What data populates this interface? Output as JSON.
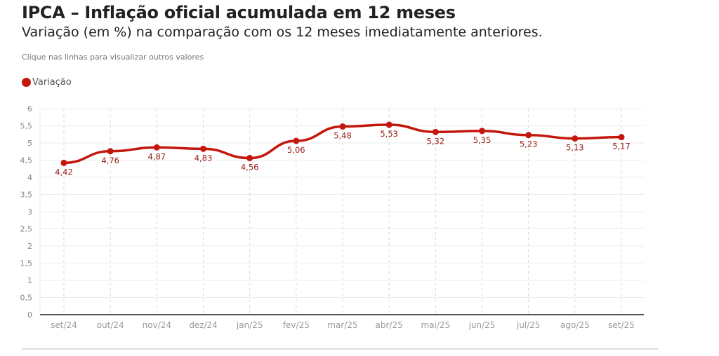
{
  "header": {
    "title": "IPCA – Inflação oficial acumulada em 12 meses",
    "subtitle": "Variação (em %) na comparação com os 12 meses imediatamente anteriores.",
    "note": "Clique nas linhas para visualizar outros valores"
  },
  "chart_data": {
    "type": "line",
    "title": "IPCA – Inflação oficial acumulada em 12 meses",
    "xlabel": "",
    "ylabel": "",
    "ylim": [
      0,
      6
    ],
    "yticks": [
      "0",
      "0,5",
      "1",
      "1,5",
      "2",
      "2,5",
      "3",
      "3,5",
      "4",
      "4,5",
      "5",
      "5,5",
      "6"
    ],
    "categories": [
      "set/24",
      "out/24",
      "nov/24",
      "dez/24",
      "jan/25",
      "fev/25",
      "mar/25",
      "abr/25",
      "mai/25",
      "jun/25",
      "jul/25",
      "ago/25",
      "set/25"
    ],
    "series": [
      {
        "name": "Variação",
        "color": "#c4170c",
        "values": [
          4.42,
          4.76,
          4.87,
          4.83,
          4.56,
          5.06,
          5.48,
          5.53,
          5.32,
          5.35,
          5.23,
          5.13,
          5.17
        ],
        "labels": [
          "4,42",
          "4,76",
          "4,87",
          "4,83",
          "4,56",
          "5,06",
          "5,48",
          "5,53",
          "5,32",
          "5,35",
          "5,23",
          "5,13",
          "5,17"
        ]
      }
    ],
    "legend_position": "top-left",
    "grid": true
  }
}
